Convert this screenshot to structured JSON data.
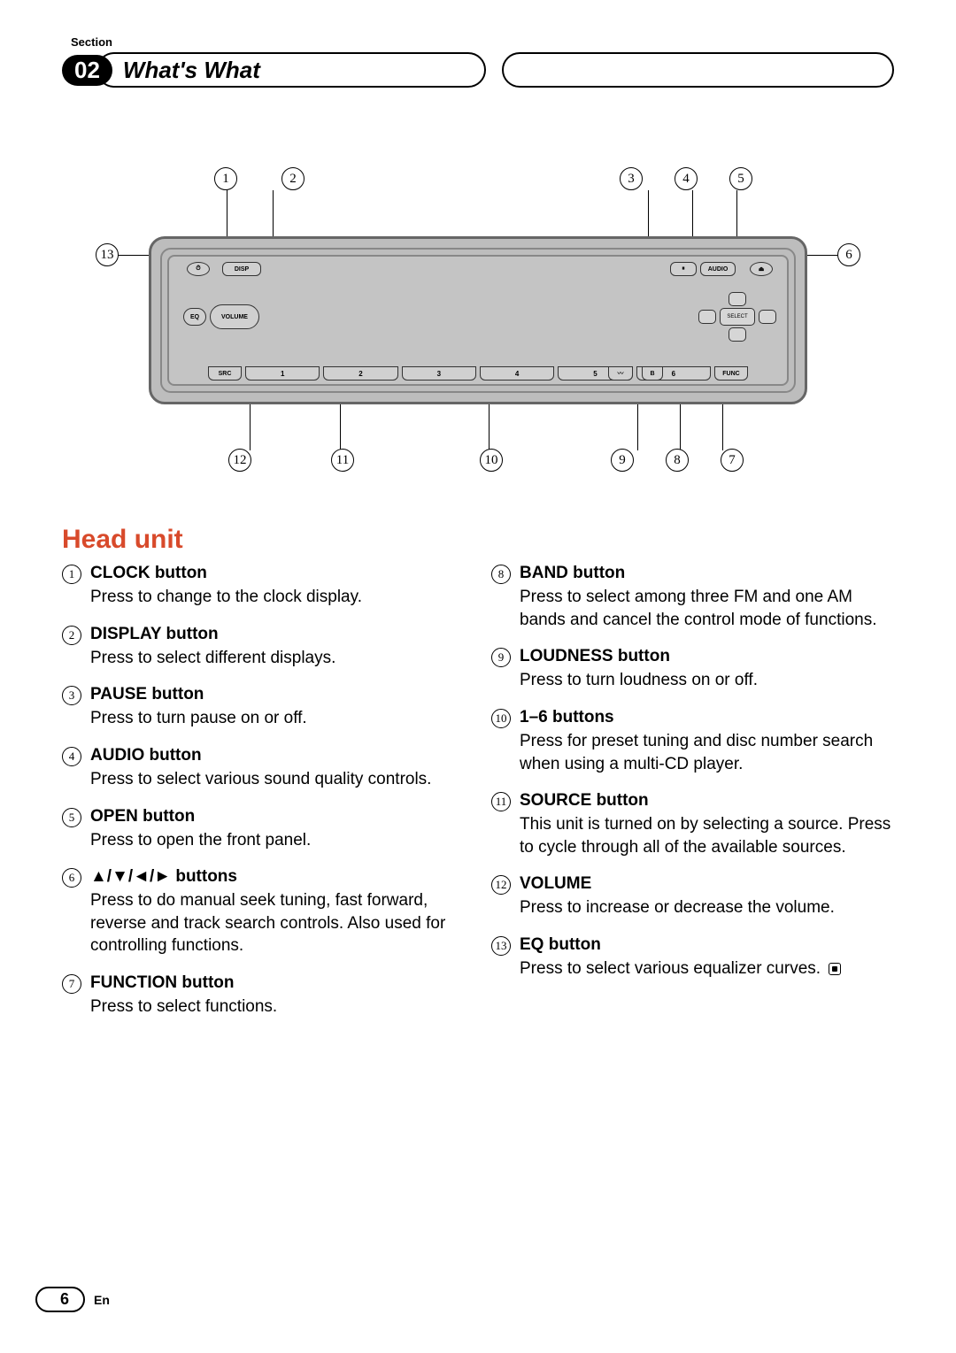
{
  "section_label": "Section",
  "section_number": "02",
  "section_title": "What's What",
  "heading": "Head unit",
  "diagram": {
    "top_nums": {
      "left": [
        "1",
        "2"
      ],
      "right": [
        "3",
        "4",
        "5"
      ]
    },
    "bot_nums": {
      "left": [
        "12",
        "11"
      ],
      "mid": [
        "10"
      ],
      "right": [
        "9",
        "8",
        "7"
      ]
    },
    "side_left": "13",
    "side_right": "6",
    "labels": {
      "disp": "DISP",
      "audio": "AUDIO",
      "eq": "EQ",
      "volume": "VOLUME",
      "select": "SELECT",
      "src": "SRC",
      "func": "FUNC",
      "band": "B",
      "nums": [
        "1",
        "2",
        "3",
        "4",
        "5",
        "6"
      ]
    }
  },
  "items_left": [
    {
      "n": "1",
      "title": "CLOCK button",
      "desc": "Press to change to the clock display."
    },
    {
      "n": "2",
      "title": "DISPLAY button",
      "desc": "Press to select different displays."
    },
    {
      "n": "3",
      "title": "PAUSE button",
      "desc": "Press to turn pause on or off."
    },
    {
      "n": "4",
      "title": "AUDIO button",
      "desc": "Press to select various sound quality controls."
    },
    {
      "n": "5",
      "title": "OPEN button",
      "desc": "Press to open the front panel."
    },
    {
      "n": "6",
      "title": "▲/▼/◄/► buttons",
      "desc": "Press to do manual seek tuning, fast forward, reverse and track search controls. Also used for controlling functions."
    },
    {
      "n": "7",
      "title": "FUNCTION button",
      "desc": "Press to select functions."
    }
  ],
  "items_right": [
    {
      "n": "8",
      "title": "BAND button",
      "desc": "Press to select among three FM and one AM bands and cancel the control mode of functions."
    },
    {
      "n": "9",
      "title": "LOUDNESS button",
      "desc": "Press to turn loudness on or off."
    },
    {
      "n": "10",
      "title": "1–6 buttons",
      "desc": "Press for preset tuning and disc number search when using a multi-CD player."
    },
    {
      "n": "11",
      "title": "SOURCE button",
      "desc": "This unit is turned on by selecting a source. Press to cycle through all of the available sources."
    },
    {
      "n": "12",
      "title": "VOLUME",
      "desc": "Press to increase or decrease the volume."
    },
    {
      "n": "13",
      "title": "EQ button",
      "desc": "Press to select various equalizer curves."
    }
  ],
  "page_number": "6",
  "language": "En",
  "colors": {
    "accent": "#d84a2b",
    "bg": "#ffffff",
    "text": "#000000",
    "unit_body": "#bdbdbd"
  }
}
